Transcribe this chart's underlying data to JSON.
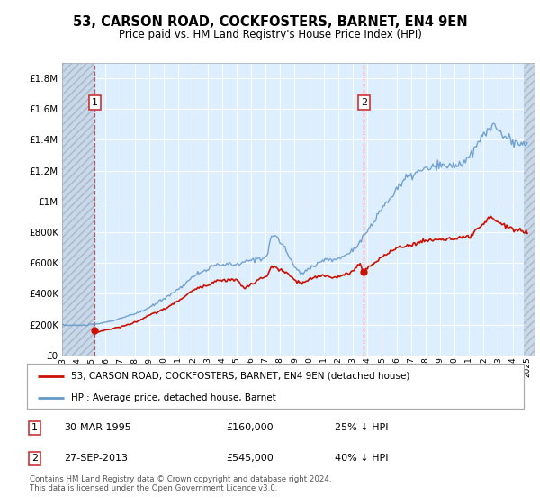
{
  "title": "53, CARSON ROAD, COCKFOSTERS, BARNET, EN4 9EN",
  "subtitle": "Price paid vs. HM Land Registry's House Price Index (HPI)",
  "background_color": "#ddeeff",
  "hatch_region_color": "#c8daea",
  "ylim": [
    0,
    1900000
  ],
  "yticks": [
    0,
    200000,
    400000,
    600000,
    800000,
    1000000,
    1200000,
    1400000,
    1600000,
    1800000
  ],
  "ytick_labels": [
    "£0",
    "£200K",
    "£400K",
    "£600K",
    "£800K",
    "£1M",
    "£1.2M",
    "£1.4M",
    "£1.6M",
    "£1.8M"
  ],
  "xlim_start": 1993.0,
  "xlim_end": 2025.5,
  "sale1_x": 1995.25,
  "sale1_y": 160000,
  "sale2_x": 2013.75,
  "sale2_y": 545000,
  "hpi_color": "#6699cc",
  "price_color": "#cc1100",
  "legend_label1": "53, CARSON ROAD, COCKFOSTERS, BARNET, EN4 9EN (detached house)",
  "legend_label2": "HPI: Average price, detached house, Barnet",
  "table_rows": [
    {
      "label": "1",
      "date": "30-MAR-1995",
      "price": "£160,000",
      "note": "25% ↓ HPI"
    },
    {
      "label": "2",
      "date": "27-SEP-2013",
      "price": "£545,000",
      "note": "40% ↓ HPI"
    }
  ],
  "footer": "Contains HM Land Registry data © Crown copyright and database right 2024.\nThis data is licensed under the Open Government Licence v3.0."
}
